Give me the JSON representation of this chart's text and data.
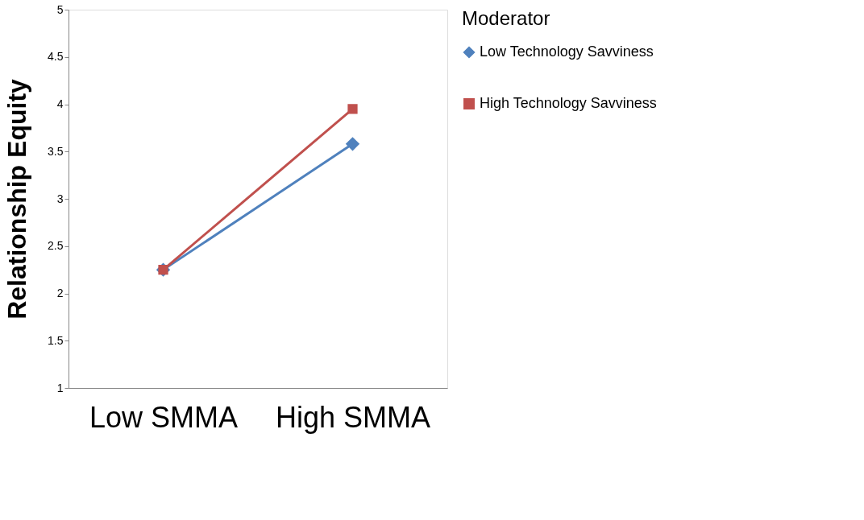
{
  "chart_data": {
    "type": "line",
    "ylabel": "Relationship Equity",
    "legend_title": "Moderator",
    "categories": [
      "Low SMMA",
      "High SMMA"
    ],
    "series": [
      {
        "name": "Low Technology Savviness",
        "color": "#4f81bd",
        "marker": "diamond",
        "values": [
          2.25,
          3.58
        ]
      },
      {
        "name": "High Technology Savviness",
        "color": "#c0504d",
        "marker": "square",
        "values": [
          2.25,
          3.95
        ]
      }
    ],
    "ylim": [
      1,
      5
    ],
    "yticks": [
      1,
      1.5,
      2,
      2.5,
      3,
      3.5,
      4,
      4.5,
      5
    ],
    "grid": false,
    "legend": "right",
    "line_style": "solid"
  }
}
